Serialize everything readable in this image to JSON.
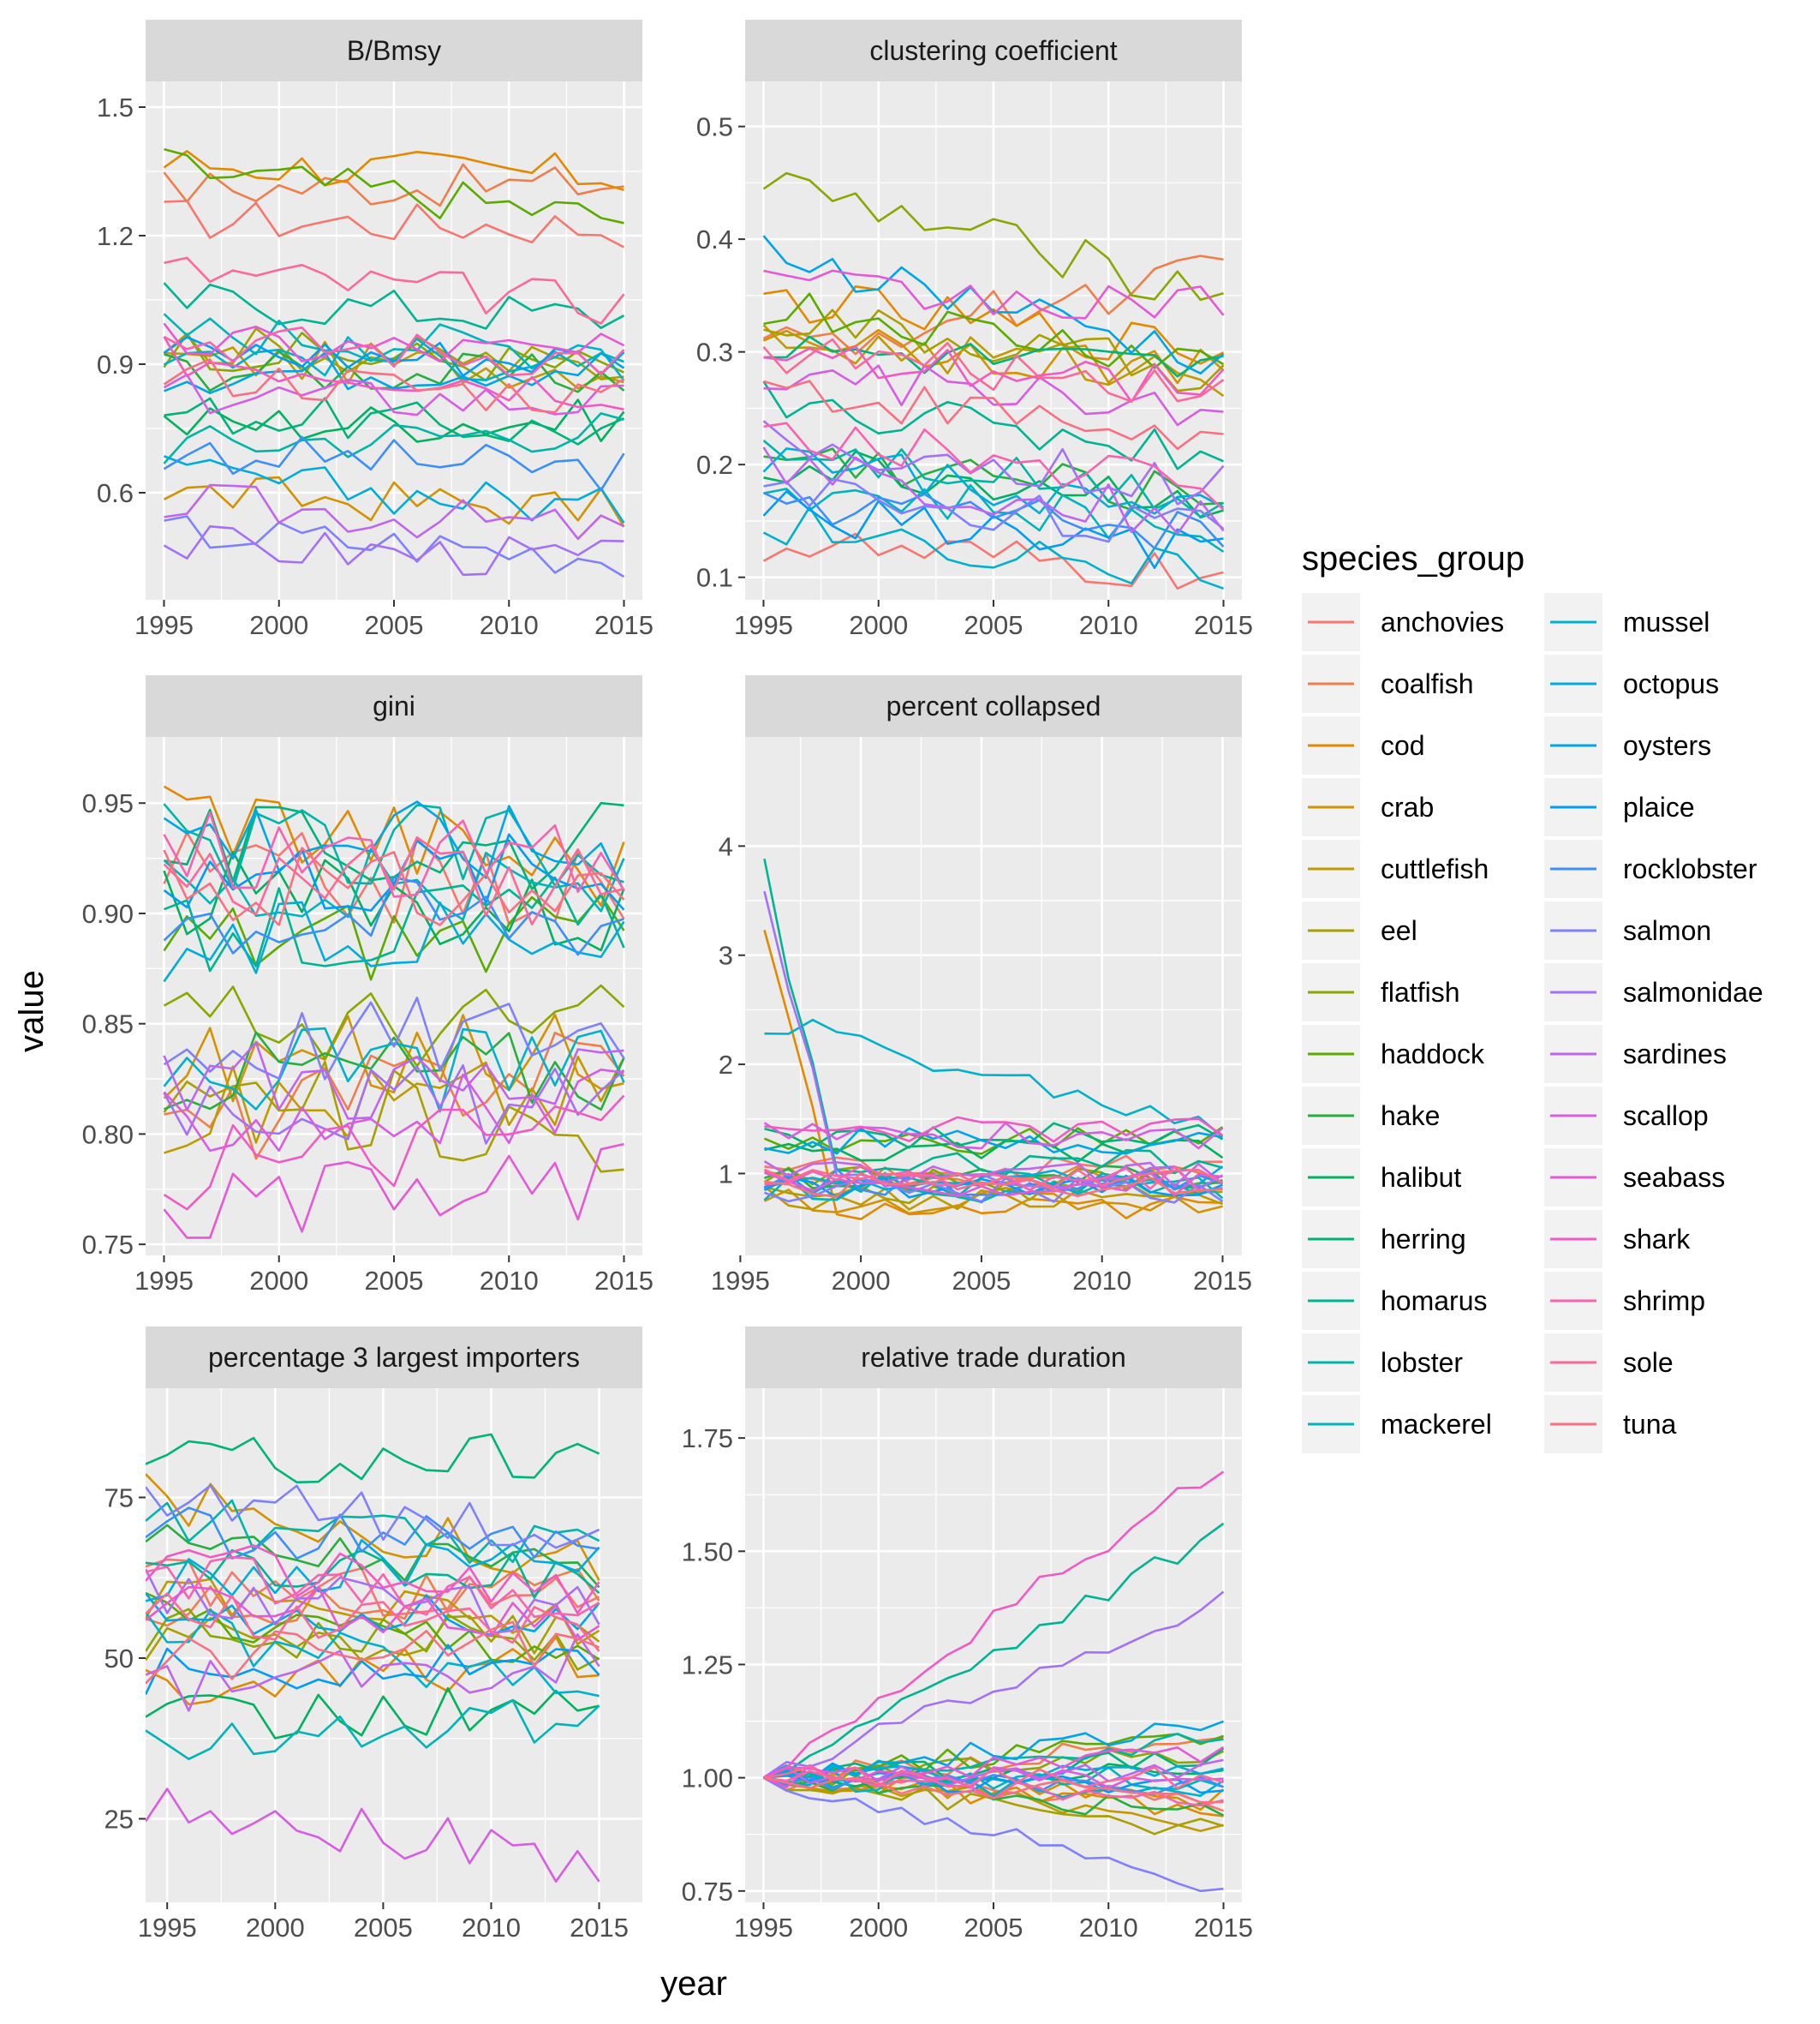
{
  "chart_data": {
    "type": "line",
    "xlabel": "year",
    "ylabel": "value",
    "legend": {
      "title": "species_group",
      "placement": "right",
      "entries": [
        {
          "name": "anchovies",
          "color": "#F8766D"
        },
        {
          "name": "coalfish",
          "color": "#F07E4A"
        },
        {
          "name": "cod",
          "color": "#E38900"
        },
        {
          "name": "crab",
          "color": "#D39200"
        },
        {
          "name": "cuttlefish",
          "color": "#BF9A00"
        },
        {
          "name": "eel",
          "color": "#A8A000"
        },
        {
          "name": "flatfish",
          "color": "#8AA600"
        },
        {
          "name": "haddock",
          "color": "#5BAA00"
        },
        {
          "name": "hake",
          "color": "#27AE3F"
        },
        {
          "name": "halibut",
          "color": "#00B15E"
        },
        {
          "name": "herring",
          "color": "#00B37A"
        },
        {
          "name": "homarus",
          "color": "#00B492"
        },
        {
          "name": "lobster",
          "color": "#00B5A7"
        },
        {
          "name": "mackerel",
          "color": "#00B4BA"
        },
        {
          "name": "mussel",
          "color": "#00B1CC"
        },
        {
          "name": "octopus",
          "color": "#00ACDC"
        },
        {
          "name": "oysters",
          "color": "#00A5E8"
        },
        {
          "name": "plaice",
          "color": "#009CF5"
        },
        {
          "name": "rocklobster",
          "color": "#3C8FF9"
        },
        {
          "name": "salmon",
          "color": "#7F80FF"
        },
        {
          "name": "salmonidae",
          "color": "#A570F9"
        },
        {
          "name": "sardines",
          "color": "#C065F0"
        },
        {
          "name": "scallop",
          "color": "#D65DE4"
        },
        {
          "name": "seabass",
          "color": "#E658D6"
        },
        {
          "name": "shark",
          "color": "#F359C3"
        },
        {
          "name": "shrimp",
          "color": "#F962AE"
        },
        {
          "name": "sole",
          "color": "#FC6998"
        },
        {
          "name": "tuna",
          "color": "#FA6F82"
        }
      ]
    },
    "panels": [
      {
        "title": "B/Bmsy",
        "xlim": [
          1994.2,
          2015.8
        ],
        "ylim": [
          0.35,
          1.56
        ],
        "xticks": [
          "1995",
          "2000",
          "2005",
          "2010",
          "2015"
        ],
        "yticks": [
          "0.6",
          "0.9",
          "1.2",
          "1.5"
        ],
        "n_years": 21,
        "base": [
          1.24,
          1.31,
          1.37,
          0.6,
          0.91,
          0.95,
          0.94,
          1.36,
          0.89,
          0.76,
          0.79,
          1.05,
          0.71,
          0.98,
          0.93,
          0.64,
          0.88,
          0.93,
          0.7,
          0.51,
          0.48,
          0.58,
          0.83,
          0.95,
          0.92,
          0.96,
          1.12,
          0.88
        ],
        "trend": [
          -0.02,
          0.01,
          -0.03,
          -0.04,
          -0.02,
          -0.06,
          -0.05,
          -0.12,
          -0.02,
          0.01,
          -0.05,
          -0.04,
          0.04,
          -0.05,
          -0.03,
          -0.08,
          0.02,
          -0.02,
          -0.05,
          -0.06,
          -0.04,
          -0.07,
          -0.02,
          -0.03,
          -0.08,
          -0.05,
          -0.08,
          -0.06
        ],
        "amp": 0.05,
        "min": 0.38,
        "max": 1.5
      },
      {
        "title": "clustering coefficient",
        "xlim": [
          1994.2,
          2015.8
        ],
        "ylim": [
          0.08,
          0.54
        ],
        "xticks": [
          "1995",
          "2000",
          "2005",
          "2010",
          "2015"
        ],
        "yticks": [
          "0.1",
          "0.2",
          "0.3",
          "0.4",
          "0.5"
        ],
        "n_years": 21,
        "base": [
          0.13,
          0.3,
          0.35,
          0.32,
          0.31,
          0.33,
          0.45,
          0.34,
          0.21,
          0.2,
          0.3,
          0.26,
          0.22,
          0.18,
          0.15,
          0.21,
          0.39,
          0.16,
          0.17,
          0.18,
          0.22,
          0.2,
          0.28,
          0.36,
          0.29,
          0.23,
          0.3,
          0.27
        ],
        "trend": [
          -0.03,
          0.07,
          -0.05,
          -0.04,
          -0.03,
          -0.05,
          -0.1,
          -0.05,
          -0.04,
          -0.03,
          -0.02,
          -0.05,
          -0.05,
          -0.04,
          -0.05,
          -0.06,
          -0.1,
          -0.04,
          -0.03,
          -0.04,
          -0.04,
          -0.05,
          -0.03,
          -0.02,
          -0.02,
          -0.05,
          -0.03,
          -0.05
        ],
        "amp": 0.02,
        "min": 0.09,
        "max": 0.52
      },
      {
        "title": "gini",
        "xlim": [
          1994.2,
          2015.8
        ],
        "ylim": [
          0.745,
          0.98
        ],
        "xticks": [
          "1995",
          "2000",
          "2005",
          "2010",
          "2015"
        ],
        "yticks": [
          "0.75",
          "0.80",
          "0.85",
          "0.90",
          "0.95"
        ],
        "n_years": 21,
        "base": [
          0.92,
          0.8,
          0.95,
          0.83,
          0.81,
          0.82,
          0.85,
          0.89,
          0.83,
          0.91,
          0.93,
          0.89,
          0.93,
          0.91,
          0.83,
          0.88,
          0.94,
          0.92,
          0.9,
          0.84,
          0.82,
          0.83,
          0.81,
          0.76,
          0.78,
          0.93,
          0.92,
          0.91
        ],
        "trend": [
          -0.01,
          0.04,
          -0.03,
          0.01,
          0.01,
          -0.02,
          0.0,
          0.0,
          0.0,
          -0.01,
          0.0,
          0.01,
          0.0,
          0.0,
          0.0,
          0.02,
          -0.01,
          0.0,
          0.0,
          0.01,
          -0.01,
          -0.01,
          0.0,
          0.02,
          0.03,
          -0.01,
          -0.01,
          0.0
        ],
        "amp": 0.02,
        "min": 0.753,
        "max": 0.972
      },
      {
        "title": "percent collapsed",
        "xlim": [
          1995.2,
          2015.8
        ],
        "ylim": [
          0.25,
          5.0
        ],
        "xticks": [
          "1995",
          "2000",
          "2005",
          "2010",
          "2015"
        ],
        "yticks": [
          "1",
          "2",
          "3",
          "4"
        ],
        "n_years": 20,
        "base": [
          1.05,
          0.95,
          0.62,
          0.75,
          0.78,
          0.82,
          0.95,
          1.25,
          0.95,
          1.2,
          1.35,
          1.1,
          0.9,
          0.85,
          2.4,
          0.95,
          1.3,
          0.88,
          0.92,
          0.85,
          0.95,
          1.0,
          1.35,
          0.9,
          1.4,
          0.95,
          0.95,
          0.9
        ],
        "trend": [
          0.0,
          0.0,
          0.08,
          0.0,
          0.0,
          0.05,
          0.0,
          0.1,
          0.0,
          0.0,
          0.0,
          0.0,
          0.0,
          0.0,
          -1.0,
          0.0,
          0.0,
          0.0,
          0.0,
          0.0,
          0.0,
          0.0,
          0.0,
          0.0,
          0.0,
          0.0,
          0.0,
          0.0
        ],
        "amp": 0.12,
        "min": 0.45,
        "max": 4.9
      },
      {
        "title": "percentage 3 largest importers",
        "xlim": [
          1994.0,
          2017.0
        ],
        "ylim": [
          12,
          92
        ],
        "xticks": [
          "1995",
          "2000",
          "2005",
          "2010",
          "2015"
        ],
        "yticks": [
          "25",
          "50",
          "75"
        ],
        "n_years": 22,
        "base": [
          62,
          58,
          45,
          75,
          60,
          52,
          55,
          57,
          68,
          40,
          80,
          65,
          72,
          38,
          55,
          62,
          58,
          48,
          70,
          75,
          60,
          45,
          28,
          58,
          65,
          63,
          57,
          50
        ],
        "trend": [
          -3,
          2,
          5,
          -10,
          -5,
          2,
          -3,
          -5,
          -4,
          2,
          2,
          -3,
          -6,
          2,
          -10,
          5,
          -3,
          2,
          -3,
          -5,
          -3,
          5,
          -10,
          -2,
          -5,
          -5,
          -3,
          3
        ],
        "amp": 4,
        "min": 15,
        "max": 90
      },
      {
        "title": "relative trade duration",
        "xlim": [
          1994.2,
          2015.8
        ],
        "ylim": [
          0.725,
          1.86
        ],
        "xticks": [
          "1995",
          "2000",
          "2005",
          "2010",
          "2015"
        ],
        "yticks": [
          "0.75",
          "1.00",
          "1.25",
          "1.50",
          "1.75"
        ],
        "n_years": 21,
        "base": [
          1,
          1,
          1,
          1,
          1,
          1,
          1,
          1,
          1,
          1,
          1,
          1,
          1,
          1,
          1,
          1,
          1,
          1,
          1,
          1,
          1,
          1,
          1,
          1,
          1,
          1,
          1,
          1
        ],
        "trend": [
          -0.05,
          0.08,
          -0.08,
          -0.05,
          -0.1,
          -0.12,
          0.05,
          0.1,
          -0.08,
          0.02,
          0.05,
          0.55,
          0.08,
          0.0,
          -0.03,
          0.02,
          0.12,
          -0.03,
          -0.02,
          -0.25,
          0.4,
          0.02,
          0.0,
          0.05,
          0.7,
          -0.05,
          0.0,
          -0.04
        ],
        "amp": 0.025,
        "min": 0.75,
        "max": 1.8
      }
    ]
  }
}
